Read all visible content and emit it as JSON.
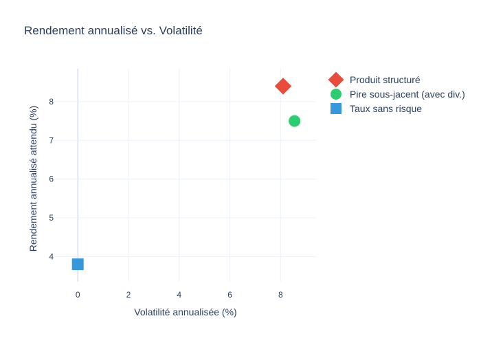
{
  "chart_data": {
    "type": "scatter",
    "title": "Rendement annualisé vs. Volatilité",
    "xlabel": "Volatilité annualisée (%)",
    "ylabel": "Rendement annualisé attendu (%)",
    "xlim": [
      -0.9,
      9.4
    ],
    "ylim": [
      3.35,
      8.85
    ],
    "x_ticks": [
      0,
      2,
      4,
      6,
      8
    ],
    "y_ticks": [
      4,
      5,
      6,
      7,
      8
    ],
    "grid": true,
    "legend_position": "right",
    "series": [
      {
        "name": "Produit structuré",
        "marker": "diamond",
        "color": "#E74C3C",
        "x": [
          8.1
        ],
        "y": [
          8.4
        ]
      },
      {
        "name": "Pire sous-jacent (avec div.)",
        "marker": "circle",
        "color": "#2ECC71",
        "x": [
          8.55
        ],
        "y": [
          7.5
        ]
      },
      {
        "name": "Taux sans risque",
        "marker": "square",
        "color": "#3498DB",
        "x": [
          0
        ],
        "y": [
          3.8
        ]
      }
    ]
  }
}
